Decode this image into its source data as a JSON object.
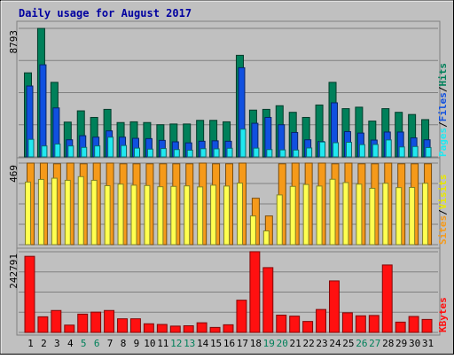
{
  "chart_data": [
    {
      "type": "bar",
      "title": "Daily usage for August 2017",
      "y_max_label": "8793",
      "ylim": [
        0,
        8793
      ],
      "grid": true,
      "legend": {
        "items": [
          "Pages",
          "/",
          "Files",
          "/",
          "Hits"
        ],
        "placement": "right, vertical"
      },
      "categories": [
        "1",
        "2",
        "3",
        "4",
        "5",
        "6",
        "7",
        "8",
        "9",
        "10",
        "11",
        "12",
        "13",
        "14",
        "15",
        "16",
        "17",
        "18",
        "19",
        "20",
        "21",
        "22",
        "23",
        "24",
        "25",
        "26",
        "27",
        "28",
        "29",
        "30",
        "31"
      ],
      "weekend_days": [
        "5",
        "6",
        "12",
        "13",
        "19",
        "20",
        "26",
        "27"
      ],
      "series": [
        {
          "name": "Hits",
          "color": "#00805A",
          "values": [
            5750,
            8790,
            5100,
            2380,
            3150,
            2700,
            3250,
            2350,
            2400,
            2350,
            2200,
            2250,
            2250,
            2500,
            2500,
            2400,
            6950,
            3200,
            3250,
            3500,
            3050,
            2700,
            3550,
            5100,
            3300,
            3400,
            2450,
            3300,
            3050,
            2900,
            2550
          ]
        },
        {
          "name": "Files",
          "color": "#1050E0",
          "values": [
            4850,
            6300,
            3350,
            1170,
            1450,
            1350,
            1780,
            1350,
            1270,
            1250,
            1130,
            1030,
            960,
            1070,
            1100,
            1070,
            6100,
            2300,
            2700,
            2200,
            1670,
            1170,
            1050,
            3700,
            1730,
            1630,
            1150,
            1700,
            1700,
            1300,
            1170
          ]
        },
        {
          "name": "Pages",
          "color": "#20E8F0",
          "values": [
            1200,
            750,
            880,
            750,
            650,
            750,
            1350,
            780,
            600,
            530,
            570,
            500,
            460,
            560,
            550,
            590,
            1900,
            600,
            500,
            480,
            470,
            610,
            1020,
            970,
            1000,
            840,
            850,
            1160,
            680,
            710,
            640
          ]
        }
      ]
    },
    {
      "type": "bar",
      "y_max_label": "469",
      "ylim": [
        0,
        469
      ],
      "grid": true,
      "legend": {
        "items": [
          "Sites",
          "/",
          "Visits"
        ],
        "placement": "right, vertical"
      },
      "categories": [
        "1",
        "2",
        "3",
        "4",
        "5",
        "6",
        "7",
        "8",
        "9",
        "10",
        "11",
        "12",
        "13",
        "14",
        "15",
        "16",
        "17",
        "18",
        "19",
        "20",
        "21",
        "22",
        "23",
        "24",
        "25",
        "26",
        "27",
        "28",
        "29",
        "30",
        "31"
      ],
      "series": [
        {
          "name": "Visits",
          "color": "#F59A1A",
          "values": [
            469,
            469,
            465,
            469,
            465,
            469,
            469,
            465,
            465,
            465,
            465,
            465,
            465,
            469,
            465,
            465,
            469,
            267,
            165,
            465,
            469,
            469,
            469,
            465,
            469,
            465,
            465,
            469,
            465,
            465,
            465
          ]
        },
        {
          "name": "Sites",
          "color": "#FFFF50",
          "values": [
            360,
            375,
            382,
            370,
            391,
            370,
            339,
            348,
            342,
            340,
            333,
            335,
            338,
            332,
            342,
            337,
            354,
            165,
            79,
            286,
            335,
            346,
            337,
            376,
            357,
            348,
            324,
            353,
            328,
            329,
            353
          ]
        }
      ]
    },
    {
      "type": "bar",
      "y_max_label": "242791",
      "ylim": [
        0,
        242791
      ],
      "grid": true,
      "legend": {
        "items": [
          "KBytes"
        ],
        "placement": "right, vertical"
      },
      "categories": [
        "1",
        "2",
        "3",
        "4",
        "5",
        "6",
        "7",
        "8",
        "9",
        "10",
        "11",
        "12",
        "13",
        "14",
        "15",
        "16",
        "17",
        "18",
        "19",
        "20",
        "21",
        "22",
        "23",
        "24",
        "25",
        "26",
        "27",
        "28",
        "29",
        "30",
        "31"
      ],
      "series": [
        {
          "name": "KBytes",
          "color": "#FF1010",
          "values": [
            229000,
            47000,
            66000,
            22000,
            55000,
            61000,
            66000,
            41000,
            41000,
            26000,
            24000,
            19000,
            20000,
            29000,
            15000,
            23000,
            97000,
            243000,
            195000,
            52000,
            49000,
            33000,
            69000,
            155000,
            59000,
            50000,
            51000,
            203000,
            31000,
            48000,
            39000
          ]
        }
      ]
    }
  ]
}
